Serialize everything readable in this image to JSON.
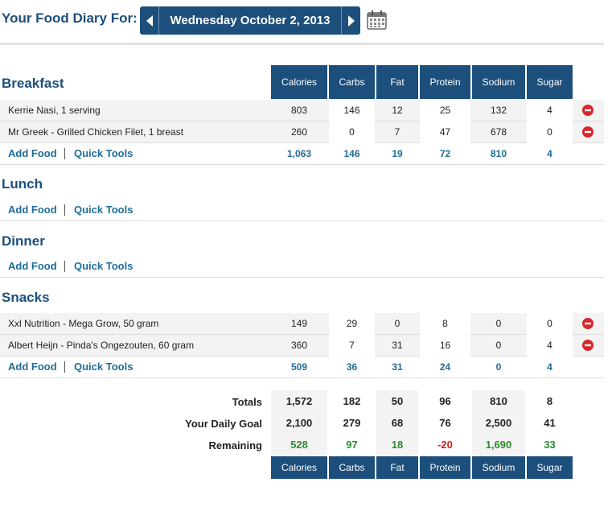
{
  "header": {
    "title": "Your Food Diary For:",
    "date": "Wednesday October 2, 2013",
    "prev_icon": "triangle-left-icon",
    "next_icon": "triangle-right-icon",
    "calendar_icon": "calendar-icon"
  },
  "columns": [
    "Calories",
    "Carbs",
    "Fat",
    "Protein",
    "Sodium",
    "Sugar"
  ],
  "links": {
    "add_food": "Add Food",
    "quick_tools": "Quick Tools"
  },
  "meals": {
    "breakfast": {
      "title": "Breakfast",
      "items": [
        {
          "name": "Kerrie Nasi, 1 serving",
          "values": [
            "803",
            "146",
            "12",
            "25",
            "132",
            "4"
          ]
        },
        {
          "name": "Mr Greek - Grilled Chicken Filet, 1 breast",
          "values": [
            "260",
            "0",
            "7",
            "47",
            "678",
            "0"
          ]
        }
      ],
      "totals": [
        "1,063",
        "146",
        "19",
        "72",
        "810",
        "4"
      ]
    },
    "lunch": {
      "title": "Lunch"
    },
    "dinner": {
      "title": "Dinner"
    },
    "snacks": {
      "title": "Snacks",
      "items": [
        {
          "name": "Xxl Nutrition - Mega Grow, 50 gram",
          "values": [
            "149",
            "29",
            "0",
            "8",
            "0",
            "0"
          ]
        },
        {
          "name": "Albert Heijn - Pinda's Ongezouten, 60 gram",
          "values": [
            "360",
            "7",
            "31",
            "16",
            "0",
            "4"
          ]
        }
      ],
      "totals": [
        "509",
        "36",
        "31",
        "24",
        "0",
        "4"
      ]
    }
  },
  "summary": {
    "totals": {
      "label": "Totals",
      "values": [
        "1,572",
        "182",
        "50",
        "96",
        "810",
        "8"
      ]
    },
    "goal": {
      "label": "Your Daily Goal",
      "values": [
        "2,100",
        "279",
        "68",
        "76",
        "2,500",
        "41"
      ]
    },
    "remaining": {
      "label": "Remaining",
      "values": [
        "528",
        "97",
        "18",
        "-20",
        "1,690",
        "33"
      ],
      "statuses": [
        "pos",
        "pos",
        "pos",
        "neg",
        "pos",
        "pos"
      ]
    }
  },
  "colors": {
    "brand": "#1c4f7c",
    "link": "#1f6c97",
    "positive": "#2e8b2e",
    "negative": "#d31f1f",
    "delete": "#d9262b"
  }
}
